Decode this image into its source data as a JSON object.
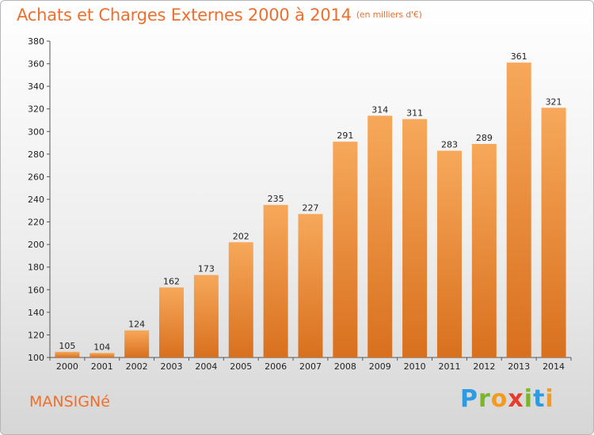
{
  "title": "Achats et Charges Externes 2000 à 2014",
  "subtitle": "(en milliers d'€)",
  "town": "MANSIGNé",
  "logo": {
    "letters": [
      "P",
      "r",
      "o",
      "x",
      "i",
      "t",
      "i"
    ],
    "colors": [
      "#2e9be0",
      "#79b629",
      "#f39a1f",
      "#e53b2c",
      "#79b629",
      "#2e9be0",
      "#f39a1f"
    ]
  },
  "colors": {
    "bar_top": "#f7a85a",
    "bar_bottom": "#d8701e",
    "title": "#ee6f2d"
  },
  "chart_data": {
    "type": "bar",
    "categories": [
      "2000",
      "2001",
      "2002",
      "2003",
      "2004",
      "2005",
      "2006",
      "2007",
      "2008",
      "2009",
      "2010",
      "2011",
      "2012",
      "2013",
      "2014"
    ],
    "values": [
      105,
      104,
      124,
      162,
      173,
      202,
      235,
      227,
      291,
      314,
      311,
      283,
      289,
      361,
      321
    ],
    "ylim": [
      100,
      380
    ],
    "yticks": [
      100,
      120,
      140,
      160,
      180,
      200,
      220,
      240,
      260,
      280,
      300,
      320,
      340,
      360,
      380
    ],
    "grid": false,
    "data_labels": true
  }
}
